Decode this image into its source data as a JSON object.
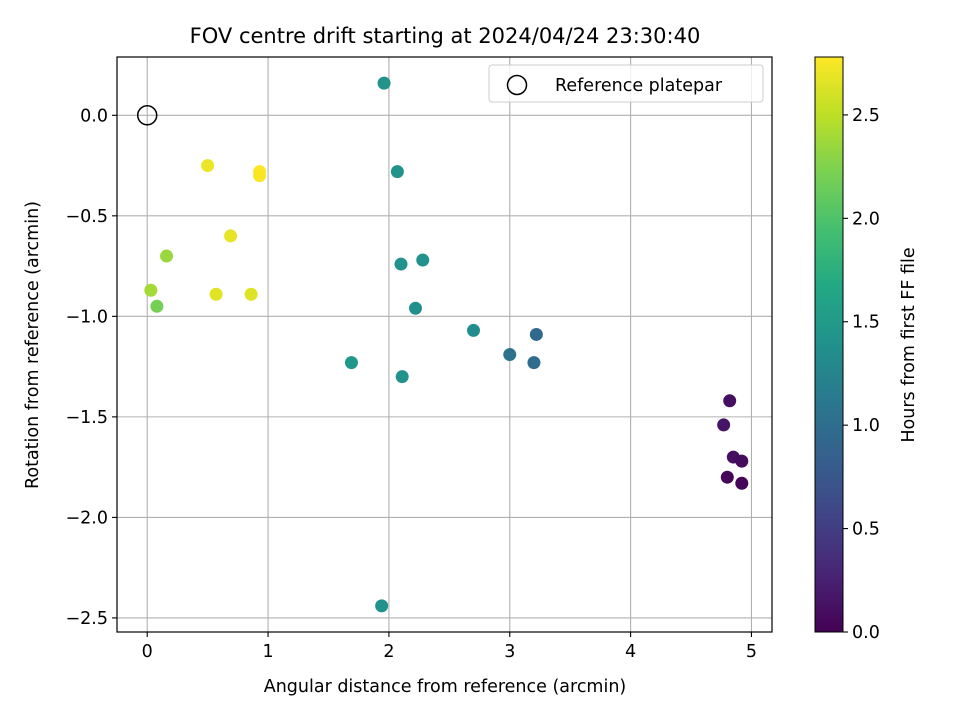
{
  "chart_data": {
    "type": "scatter",
    "title": "FOV centre drift starting at 2024/04/24 23:30:40",
    "xlabel": "Angular distance from reference (arcmin)",
    "ylabel": "Rotation from reference (arcmin)",
    "xlim": [
      -0.25,
      5.17
    ],
    "ylim": [
      -2.57,
      0.29
    ],
    "xticks": [
      0,
      1,
      2,
      3,
      4,
      5
    ],
    "xtick_labels": [
      "0",
      "1",
      "2",
      "3",
      "4",
      "5"
    ],
    "yticks": [
      0.0,
      -0.5,
      -1.0,
      -1.5,
      -2.0,
      -2.5
    ],
    "ytick_labels": [
      "0.0",
      "−0.5",
      "−1.0",
      "−1.5",
      "−2.0",
      "−2.5"
    ],
    "grid": true,
    "colormap": "viridis",
    "colorbar": {
      "label": "Hours from first FF file",
      "range": [
        0.0,
        2.78
      ],
      "ticks": [
        0.0,
        0.5,
        1.0,
        1.5,
        2.0,
        2.5
      ],
      "tick_labels": [
        "0.0",
        "0.5",
        "1.0",
        "1.5",
        "2.0",
        "2.5"
      ]
    },
    "legend": {
      "position": "upper right",
      "entries": [
        "Reference platepar"
      ]
    },
    "reference_point": {
      "x": 0.0,
      "y": 0.0
    },
    "points": [
      {
        "x": 1.96,
        "y": 0.16,
        "c": 1.42
      },
      {
        "x": 2.07,
        "y": -0.28,
        "c": 1.42
      },
      {
        "x": 2.1,
        "y": -0.74,
        "c": 1.4
      },
      {
        "x": 2.28,
        "y": -0.72,
        "c": 1.4
      },
      {
        "x": 2.22,
        "y": -0.96,
        "c": 1.38
      },
      {
        "x": 2.7,
        "y": -1.07,
        "c": 1.35
      },
      {
        "x": 1.69,
        "y": -1.23,
        "c": 1.45
      },
      {
        "x": 2.11,
        "y": -1.3,
        "c": 1.42
      },
      {
        "x": 1.94,
        "y": -2.44,
        "c": 1.4
      },
      {
        "x": 3.0,
        "y": -1.19,
        "c": 1.05
      },
      {
        "x": 3.2,
        "y": -1.23,
        "c": 0.98
      },
      {
        "x": 3.22,
        "y": -1.09,
        "c": 0.95
      },
      {
        "x": 4.77,
        "y": -1.54,
        "c": 0.15
      },
      {
        "x": 4.82,
        "y": -1.42,
        "c": 0.1
      },
      {
        "x": 4.85,
        "y": -1.7,
        "c": 0.12
      },
      {
        "x": 4.92,
        "y": -1.72,
        "c": 0.08
      },
      {
        "x": 4.8,
        "y": -1.8,
        "c": 0.05
      },
      {
        "x": 4.92,
        "y": -1.83,
        "c": 0.03
      },
      {
        "x": 0.5,
        "y": -0.25,
        "c": 2.7
      },
      {
        "x": 0.93,
        "y": -0.28,
        "c": 2.78
      },
      {
        "x": 0.93,
        "y": -0.3,
        "c": 2.76
      },
      {
        "x": 0.69,
        "y": -0.6,
        "c": 2.68
      },
      {
        "x": 0.86,
        "y": -0.89,
        "c": 2.65
      },
      {
        "x": 0.57,
        "y": -0.89,
        "c": 2.66
      },
      {
        "x": 0.16,
        "y": -0.7,
        "c": 2.35
      },
      {
        "x": 0.03,
        "y": -0.87,
        "c": 2.4
      },
      {
        "x": 0.08,
        "y": -0.95,
        "c": 2.2
      }
    ]
  }
}
